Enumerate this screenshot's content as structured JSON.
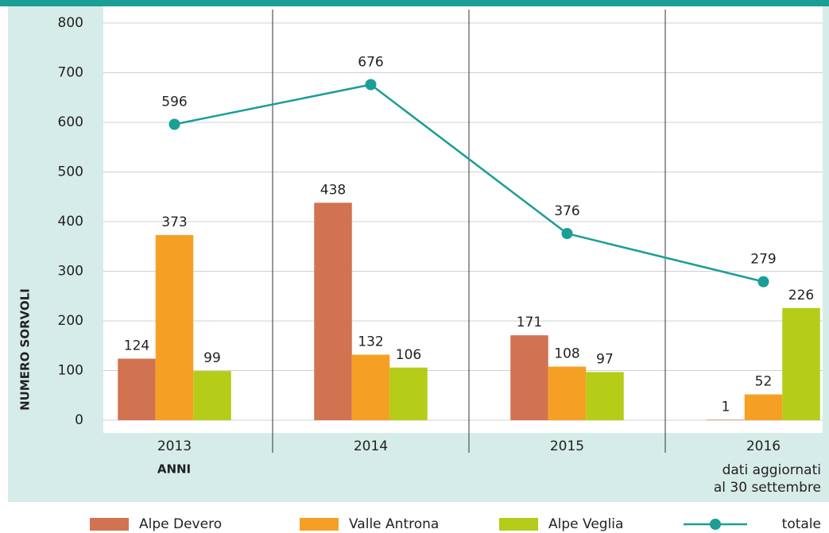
{
  "chart_data": {
    "type": "bar",
    "y_label": "NUMERO SORVOLI",
    "x_label": "ANNI",
    "annotation": [
      "dati aggiornati",
      "al 30 settembre"
    ],
    "categories": [
      "2013",
      "2014",
      "2015",
      "2016"
    ],
    "series": [
      {
        "name": "Alpe Devero",
        "color": "#d17350",
        "values": [
          124,
          438,
          171,
          1
        ]
      },
      {
        "name": "Valle Antrona",
        "color": "#f5a024",
        "values": [
          373,
          132,
          108,
          52
        ]
      },
      {
        "name": "Alpe Veglia",
        "color": "#b5cc18",
        "values": [
          99,
          106,
          97,
          226
        ]
      },
      {
        "name": "totale",
        "type": "line",
        "color": "#1a9e96",
        "values": [
          596,
          676,
          376,
          279
        ]
      }
    ],
    "ylim": [
      0,
      800
    ],
    "yticks": [
      0,
      100,
      200,
      300,
      400,
      500,
      600,
      700,
      800
    ],
    "grid": true
  }
}
